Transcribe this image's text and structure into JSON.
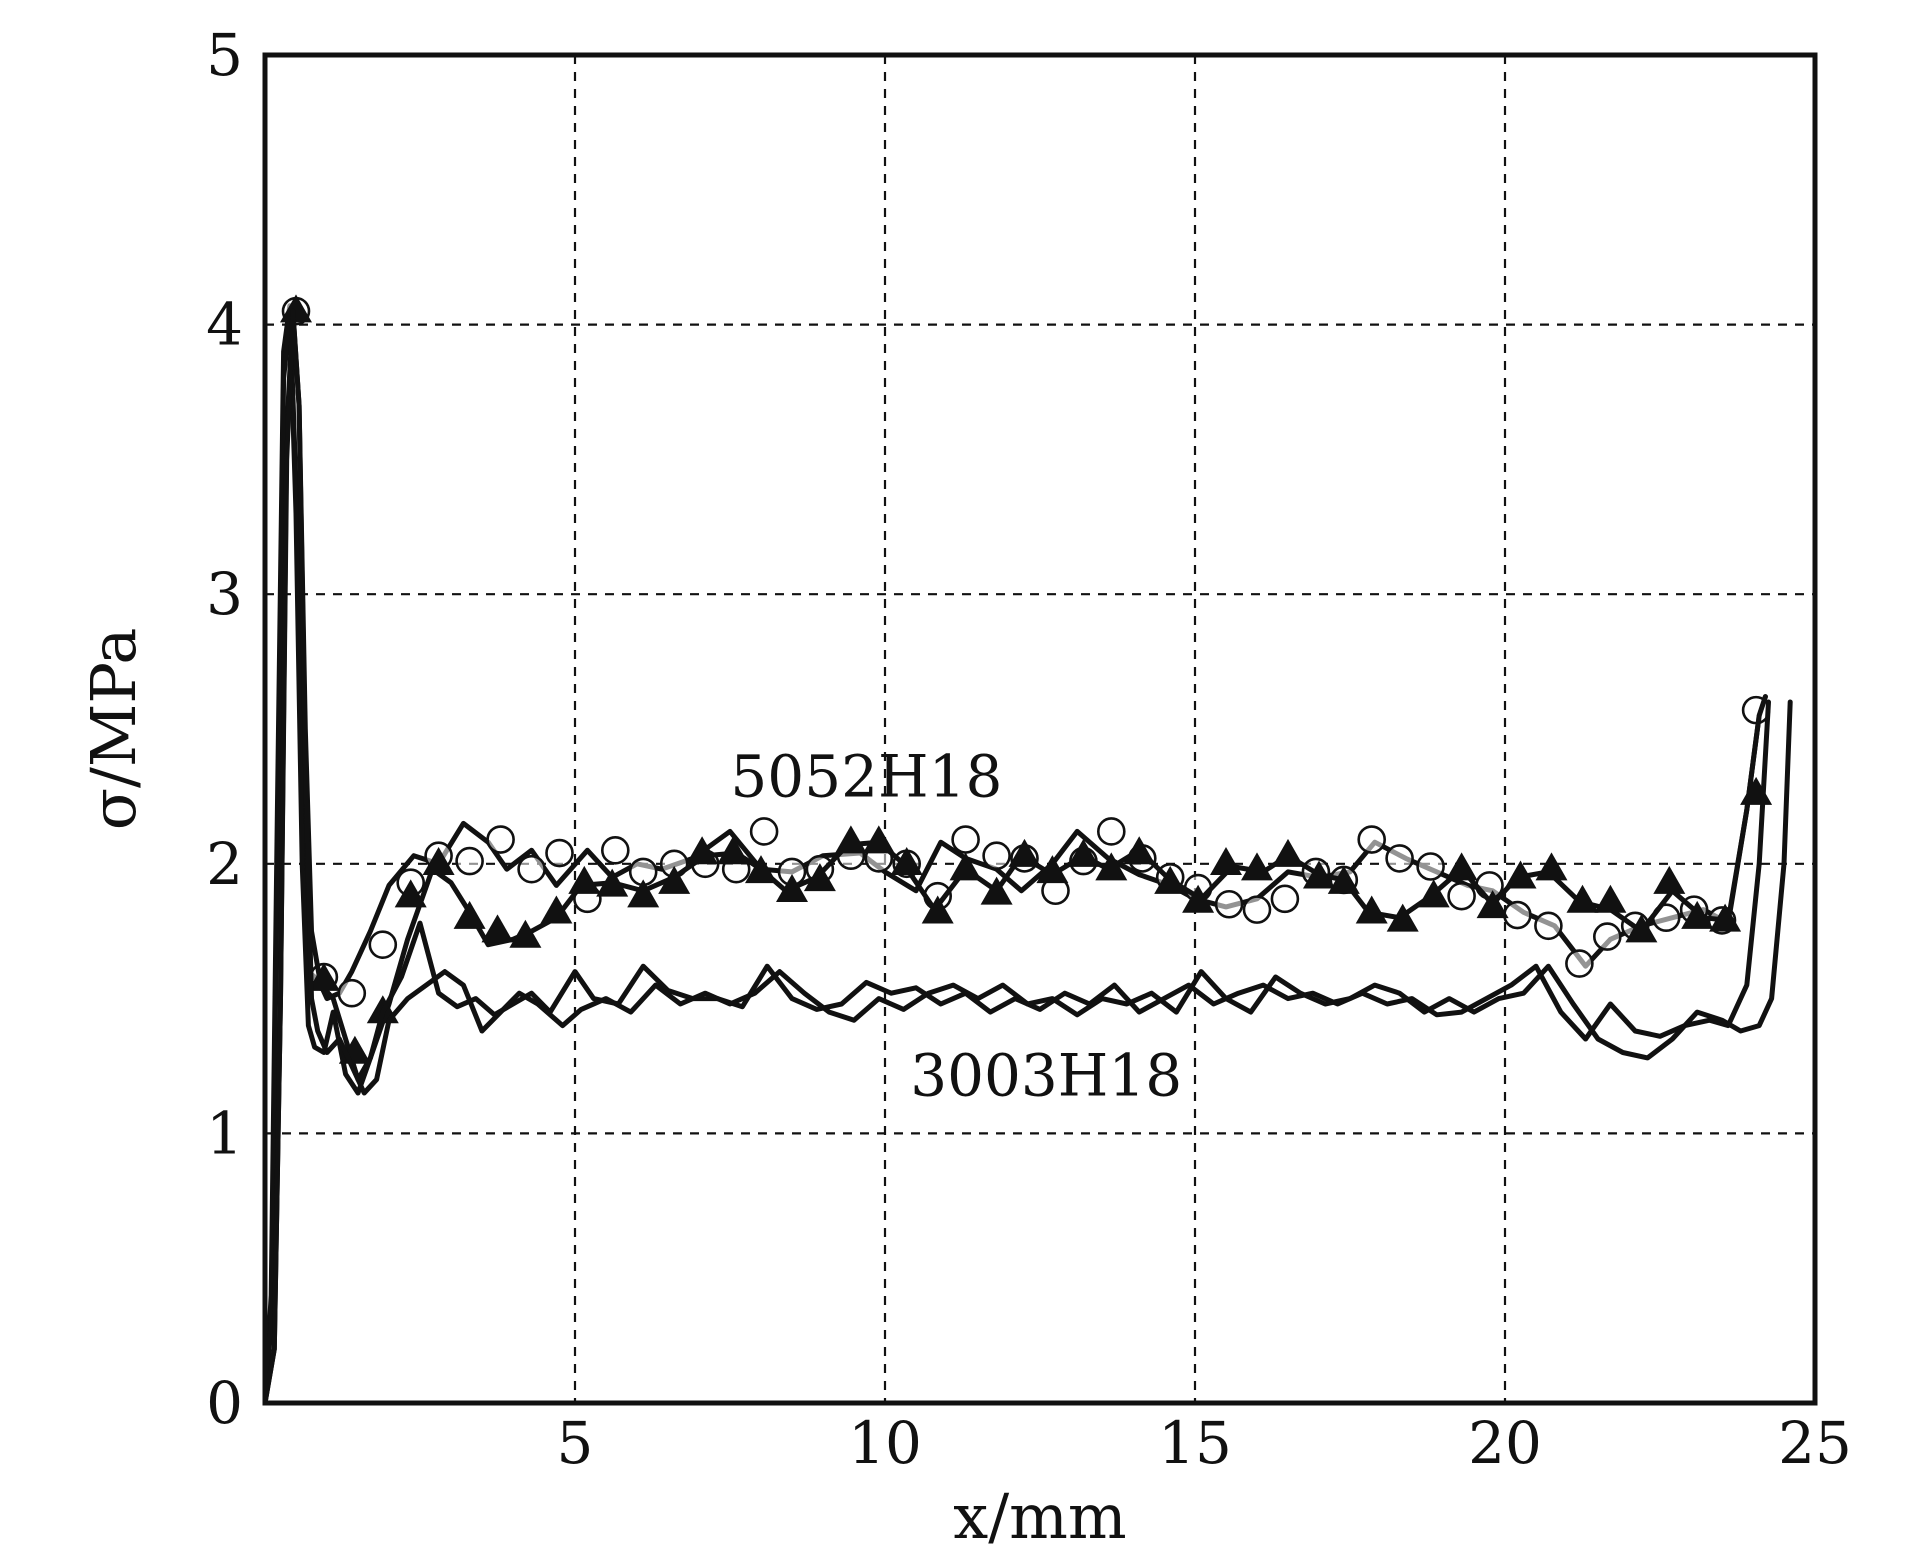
{
  "chart_data": {
    "type": "line",
    "title": "",
    "xlabel": "x/mm",
    "ylabel": "σ/MPa",
    "xlim": [
      0,
      25
    ],
    "ylim": [
      0,
      5
    ],
    "xticks": [
      0,
      5,
      10,
      15,
      20,
      25
    ],
    "yticks": [
      0,
      1,
      2,
      3,
      4,
      5
    ],
    "xtick_labels": [
      "",
      "5",
      "10",
      "15",
      "20",
      "25"
    ],
    "ytick_labels": [
      "0",
      "1",
      "2",
      "3",
      "4",
      "5"
    ],
    "grid": true,
    "colors": {
      "ink": "#111111",
      "background": "#ffffff"
    },
    "annotations": [
      {
        "text": "5052H18",
        "x": 9.7,
        "y": 2.25
      },
      {
        "text": "3003H18",
        "x": 12.6,
        "y": 1.14
      }
    ],
    "series": [
      {
        "group": "5052H18",
        "marker": "circle-open",
        "x": [
          0,
          0.1,
          0.2,
          0.3,
          0.4,
          0.5,
          0.6,
          0.7,
          0.8,
          0.9,
          1.0,
          1.2,
          1.4,
          1.7,
          2.0,
          2.4,
          2.8,
          3.2,
          3.6,
          3.9,
          4.3,
          4.7,
          5.2,
          5.6,
          6.0,
          6.4,
          6.9,
          7.5,
          8.0,
          8.5,
          9.0,
          9.6,
          10.0,
          10.5,
          10.9,
          11.3,
          11.8,
          12.2,
          12.7,
          13.1,
          13.6,
          14.1,
          14.6,
          15.0,
          15.5,
          16.0,
          16.5,
          17.0,
          17.5,
          17.9,
          18.4,
          18.9,
          19.4,
          19.8,
          20.3,
          20.8,
          21.3,
          21.7,
          22.2,
          22.7,
          23.2,
          23.6,
          23.9,
          24.1,
          24.2
        ],
        "y": [
          0,
          0.4,
          2.2,
          3.9,
          4.07,
          3.4,
          2.2,
          1.6,
          1.58,
          1.55,
          1.5,
          1.52,
          1.6,
          1.75,
          1.92,
          2.03,
          2.0,
          2.15,
          2.08,
          1.98,
          2.05,
          1.92,
          2.05,
          1.95,
          2.0,
          1.98,
          2.02,
          2.12,
          1.98,
          1.97,
          2.03,
          2.04,
          1.97,
          1.9,
          2.08,
          2.02,
          1.98,
          1.9,
          2.0,
          2.12,
          2.02,
          1.96,
          1.92,
          1.87,
          1.84,
          1.87,
          1.97,
          1.95,
          1.97,
          2.08,
          2.02,
          1.97,
          1.92,
          1.9,
          1.82,
          1.77,
          1.62,
          1.72,
          1.77,
          1.8,
          1.83,
          1.78,
          2.2,
          2.55,
          2.62
        ],
        "marker_x": [
          0.5,
          0.95,
          1.4,
          1.9,
          2.35,
          2.8,
          3.3,
          3.8,
          4.3,
          4.75,
          5.2,
          5.65,
          6.1,
          6.6,
          7.1,
          7.6,
          8.05,
          8.5,
          8.95,
          9.45,
          9.9,
          10.35,
          10.85,
          11.3,
          11.8,
          12.25,
          12.75,
          13.2,
          13.65,
          14.15,
          14.6,
          15.05,
          15.55,
          16.0,
          16.45,
          16.95,
          17.4,
          17.85,
          18.3,
          18.8,
          19.3,
          19.75,
          20.2,
          20.7,
          21.2,
          21.65,
          22.1,
          22.6,
          23.05,
          23.5,
          24.05
        ],
        "marker_y": [
          4.05,
          1.58,
          1.52,
          1.7,
          1.93,
          2.03,
          2.01,
          2.09,
          1.98,
          2.04,
          1.87,
          2.05,
          1.97,
          2.0,
          2.0,
          1.98,
          2.12,
          1.97,
          1.98,
          2.03,
          2.02,
          2.0,
          1.88,
          2.09,
          2.03,
          2.02,
          1.9,
          2.01,
          2.12,
          2.02,
          1.95,
          1.91,
          1.85,
          1.83,
          1.87,
          1.97,
          1.94,
          2.09,
          2.02,
          1.99,
          1.88,
          1.92,
          1.81,
          1.77,
          1.63,
          1.73,
          1.77,
          1.8,
          1.83,
          1.79,
          2.57
        ]
      },
      {
        "group": "5052H18",
        "marker": "triangle-filled",
        "x": [
          0,
          0.15,
          0.25,
          0.35,
          0.45,
          0.55,
          0.65,
          0.75,
          0.9,
          1.1,
          1.3,
          1.5,
          1.7,
          2.0,
          2.3,
          2.7,
          3.0,
          3.3,
          3.6,
          4.0,
          4.3,
          4.7,
          5.1,
          5.6,
          6.1,
          6.6,
          7.1,
          7.6,
          8.0,
          8.4,
          8.9,
          9.4,
          9.9,
          10.3,
          10.8,
          11.3,
          11.8,
          12.2,
          12.7,
          13.2,
          13.6,
          14.1,
          14.6,
          15.1,
          15.6,
          16.1,
          16.5,
          17.0,
          17.4,
          17.8,
          18.3,
          18.8,
          19.3,
          19.8,
          20.2,
          20.7,
          21.2,
          21.7,
          22.2,
          22.7,
          23.2,
          23.6,
          23.9,
          24.1,
          24.2
        ],
        "y": [
          0,
          0.2,
          1.5,
          3.6,
          4.05,
          3.7,
          2.5,
          1.75,
          1.55,
          1.5,
          1.35,
          1.2,
          1.28,
          1.48,
          1.72,
          1.98,
          1.93,
          1.82,
          1.7,
          1.72,
          1.75,
          1.8,
          1.92,
          1.93,
          1.9,
          1.95,
          2.03,
          2.04,
          1.98,
          1.9,
          1.95,
          2.07,
          2.08,
          2.0,
          1.83,
          1.98,
          1.9,
          2.03,
          1.96,
          2.03,
          1.98,
          2.05,
          1.94,
          1.87,
          1.99,
          1.97,
          2.03,
          1.96,
          1.94,
          1.82,
          1.8,
          1.88,
          1.98,
          1.85,
          1.95,
          1.97,
          1.86,
          1.83,
          1.75,
          1.9,
          1.8,
          1.79,
          2.2,
          2.55,
          2.62
        ],
        "marker_x": [
          0.5,
          0.95,
          1.45,
          1.9,
          2.35,
          2.8,
          3.3,
          3.75,
          4.2,
          4.7,
          5.15,
          5.6,
          6.1,
          6.6,
          7.05,
          7.55,
          8.0,
          8.5,
          8.95,
          9.45,
          9.9,
          10.35,
          10.85,
          11.3,
          11.8,
          12.25,
          12.7,
          13.2,
          13.65,
          14.1,
          14.6,
          15.05,
          15.5,
          16.0,
          16.5,
          17.0,
          17.4,
          17.85,
          18.35,
          18.85,
          19.3,
          19.8,
          20.25,
          20.75,
          21.25,
          21.7,
          22.2,
          22.65,
          23.1,
          23.55,
          24.05
        ],
        "marker_y": [
          4.05,
          1.57,
          1.3,
          1.45,
          1.88,
          2.0,
          1.8,
          1.75,
          1.73,
          1.82,
          1.93,
          1.92,
          1.88,
          1.93,
          2.04,
          2.04,
          1.97,
          1.9,
          1.94,
          2.08,
          2.08,
          2.0,
          1.82,
          1.98,
          1.89,
          2.03,
          1.97,
          2.03,
          1.98,
          2.04,
          1.93,
          1.86,
          2.0,
          1.98,
          2.03,
          1.95,
          1.93,
          1.82,
          1.79,
          1.88,
          1.98,
          1.84,
          1.95,
          1.98,
          1.86,
          1.86,
          1.75,
          1.93,
          1.8,
          1.79,
          2.26
        ]
      },
      {
        "group": "3003H18",
        "marker": "none",
        "x": [
          0,
          0.1,
          0.2,
          0.3,
          0.4,
          0.5,
          0.6,
          0.7,
          0.8,
          0.95,
          1.1,
          1.3,
          1.5,
          1.7,
          1.9,
          2.2,
          2.5,
          2.8,
          3.1,
          3.4,
          3.7,
          4.0,
          4.3,
          4.6,
          5.0,
          5.3,
          5.7,
          6.1,
          6.5,
          6.9,
          7.3,
          7.7,
          8.1,
          8.5,
          8.9,
          9.3,
          9.7,
          10.1,
          10.5,
          10.9,
          11.3,
          11.7,
          12.1,
          12.5,
          12.9,
          13.3,
          13.7,
          14.1,
          14.5,
          14.9,
          15.3,
          15.7,
          16.1,
          16.5,
          16.9,
          17.3,
          17.7,
          18.1,
          18.5,
          18.9,
          19.3,
          19.7,
          20.1,
          20.5,
          20.9,
          21.3,
          21.7,
          22.1,
          22.5,
          22.9,
          23.3,
          23.6,
          23.9,
          24.1,
          24.25
        ],
        "y": [
          0,
          0.3,
          2.0,
          3.8,
          4.03,
          3.3,
          2.0,
          1.4,
          1.32,
          1.3,
          1.45,
          1.22,
          1.15,
          1.28,
          1.45,
          1.58,
          1.78,
          1.52,
          1.47,
          1.5,
          1.44,
          1.48,
          1.52,
          1.45,
          1.6,
          1.5,
          1.48,
          1.62,
          1.53,
          1.5,
          1.5,
          1.47,
          1.62,
          1.5,
          1.46,
          1.48,
          1.56,
          1.52,
          1.54,
          1.48,
          1.52,
          1.45,
          1.5,
          1.46,
          1.52,
          1.48,
          1.55,
          1.45,
          1.5,
          1.55,
          1.48,
          1.52,
          1.55,
          1.5,
          1.52,
          1.48,
          1.52,
          1.48,
          1.5,
          1.44,
          1.45,
          1.5,
          1.55,
          1.62,
          1.45,
          1.35,
          1.48,
          1.38,
          1.36,
          1.4,
          1.42,
          1.4,
          1.55,
          2.0,
          2.6
        ]
      },
      {
        "group": "3003H18",
        "marker": "none",
        "x": [
          0,
          0.15,
          0.25,
          0.35,
          0.45,
          0.55,
          0.65,
          0.75,
          0.85,
          1.0,
          1.2,
          1.4,
          1.6,
          1.8,
          2.0,
          2.3,
          2.6,
          2.9,
          3.2,
          3.5,
          3.8,
          4.1,
          4.4,
          4.8,
          5.1,
          5.5,
          5.9,
          6.3,
          6.7,
          7.1,
          7.5,
          7.9,
          8.3,
          8.7,
          9.1,
          9.5,
          9.9,
          10.3,
          10.7,
          11.1,
          11.5,
          11.9,
          12.3,
          12.7,
          13.1,
          13.5,
          13.9,
          14.3,
          14.7,
          15.1,
          15.5,
          15.9,
          16.3,
          16.7,
          17.1,
          17.5,
          17.9,
          18.3,
          18.7,
          19.1,
          19.5,
          19.9,
          20.3,
          20.7,
          21.1,
          21.5,
          21.9,
          22.3,
          22.7,
          23.1,
          23.5,
          23.8,
          24.1,
          24.3,
          24.5,
          24.6
        ],
        "y": [
          0,
          0.2,
          1.5,
          3.5,
          4.05,
          3.7,
          2.4,
          1.5,
          1.38,
          1.3,
          1.35,
          1.25,
          1.15,
          1.2,
          1.42,
          1.5,
          1.55,
          1.6,
          1.55,
          1.38,
          1.45,
          1.52,
          1.48,
          1.4,
          1.46,
          1.5,
          1.45,
          1.55,
          1.48,
          1.52,
          1.48,
          1.52,
          1.6,
          1.52,
          1.45,
          1.42,
          1.5,
          1.46,
          1.52,
          1.55,
          1.5,
          1.55,
          1.48,
          1.5,
          1.44,
          1.5,
          1.48,
          1.52,
          1.45,
          1.6,
          1.5,
          1.45,
          1.58,
          1.52,
          1.48,
          1.5,
          1.55,
          1.52,
          1.45,
          1.5,
          1.45,
          1.5,
          1.52,
          1.62,
          1.48,
          1.35,
          1.3,
          1.28,
          1.35,
          1.45,
          1.42,
          1.38,
          1.4,
          1.5,
          2.0,
          2.6
        ]
      }
    ]
  }
}
